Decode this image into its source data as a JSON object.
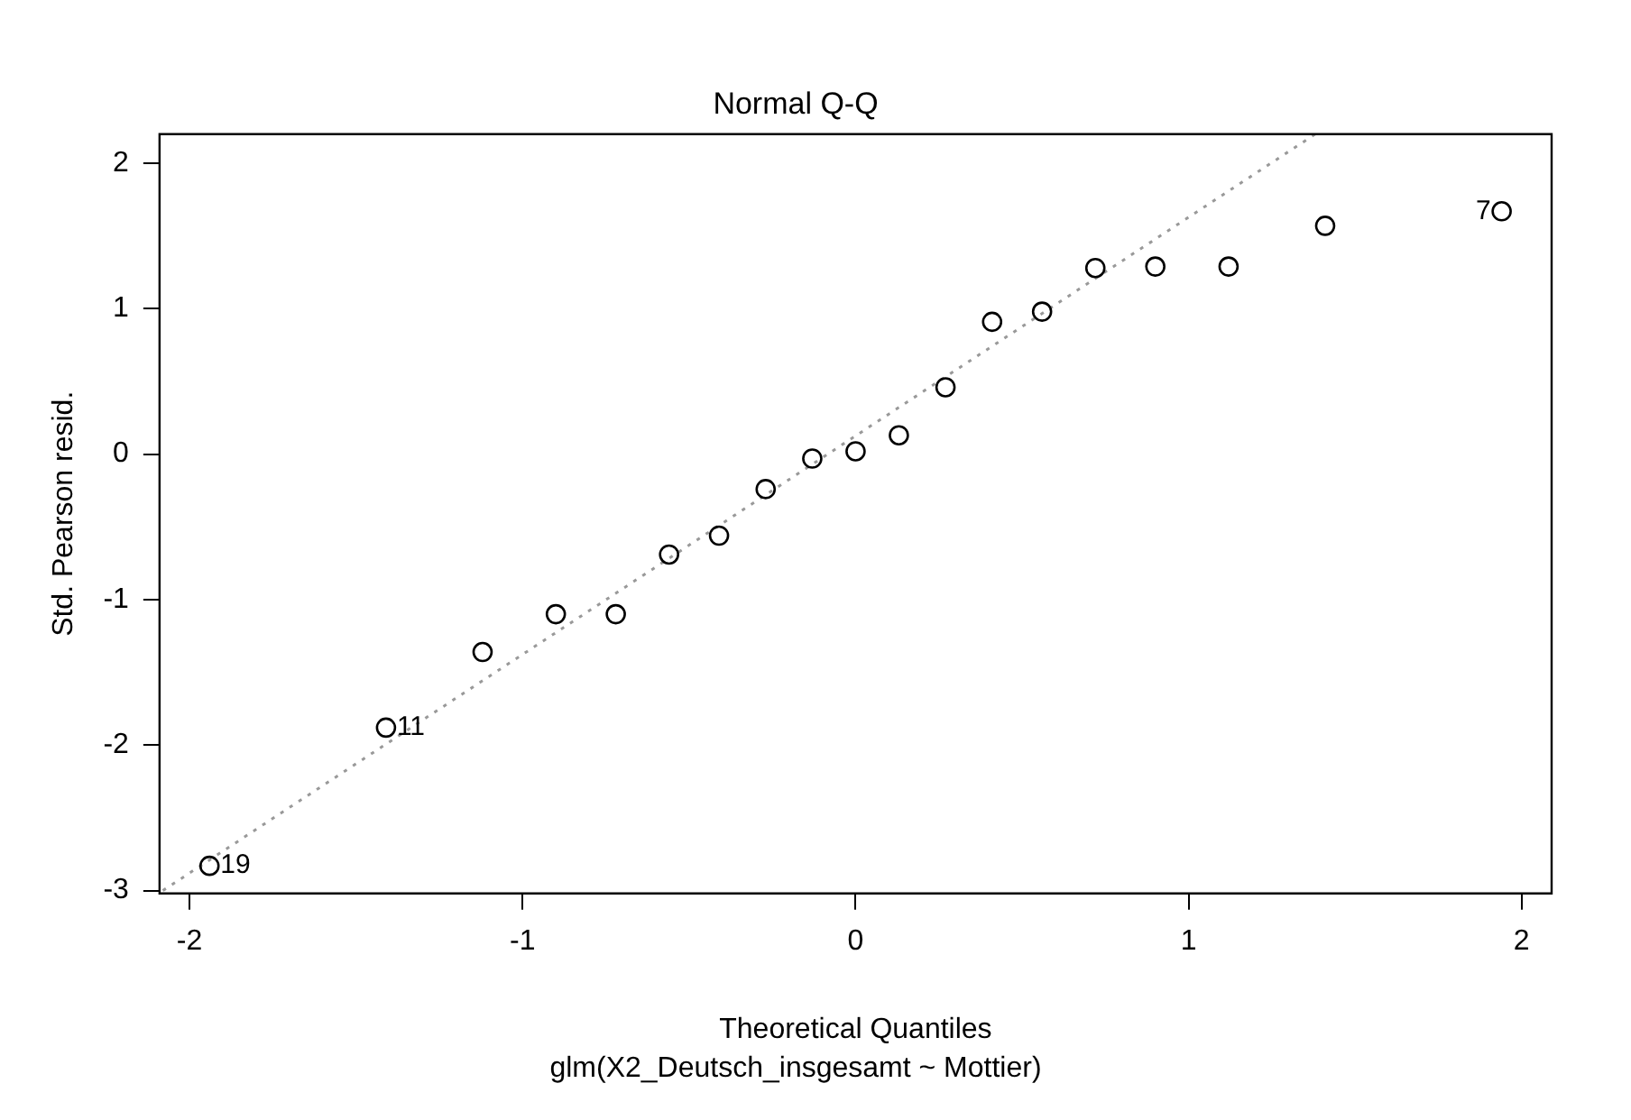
{
  "chart_data": {
    "type": "scatter",
    "title": "Normal Q-Q",
    "subtitle": "glm(X2_Deutsch_insgesamt ~ Mottier)",
    "xlabel": "Theoretical Quantiles",
    "ylabel": "Std. Pearson resid.",
    "x": [
      -1.94,
      -1.41,
      -1.12,
      -0.9,
      -0.72,
      -0.56,
      -0.41,
      -0.27,
      -0.13,
      0,
      0.13,
      0.27,
      0.41,
      0.56,
      0.72,
      0.9,
      1.12,
      1.41,
      1.94
    ],
    "series": [
      {
        "color": "#000000",
        "marker": "circle",
        "values": [
          -2.83,
          -1.88,
          -1.36,
          -1.1,
          -1.1,
          -0.69,
          -0.56,
          -0.24,
          -0.03,
          0.02,
          0.13,
          0.46,
          0.91,
          0.98,
          1.28,
          1.29,
          1.29,
          1.57,
          1.67
        ]
      },
      {
        "type": "line",
        "color": "#999999",
        "marker": "none",
        "line_style": "dotted",
        "x": [
          -2.08,
          1.38
        ],
        "values": [
          -3.0,
          2.2
        ]
      }
    ],
    "annotations": [
      {
        "text": "19",
        "x": -1.94,
        "y": -2.83
      },
      {
        "text": "11",
        "x": -1.41,
        "y": -1.88
      },
      {
        "text": "7",
        "x": 1.94,
        "y": 1.67
      }
    ],
    "xlim": [
      -2.09,
      2.09
    ],
    "ylim": [
      -3.02,
      2.2
    ],
    "xticks": [
      -2,
      -1,
      0,
      1,
      2
    ],
    "yticks": [
      -3,
      -2,
      -1,
      0,
      1,
      2
    ],
    "grid": false,
    "legend": false
  }
}
